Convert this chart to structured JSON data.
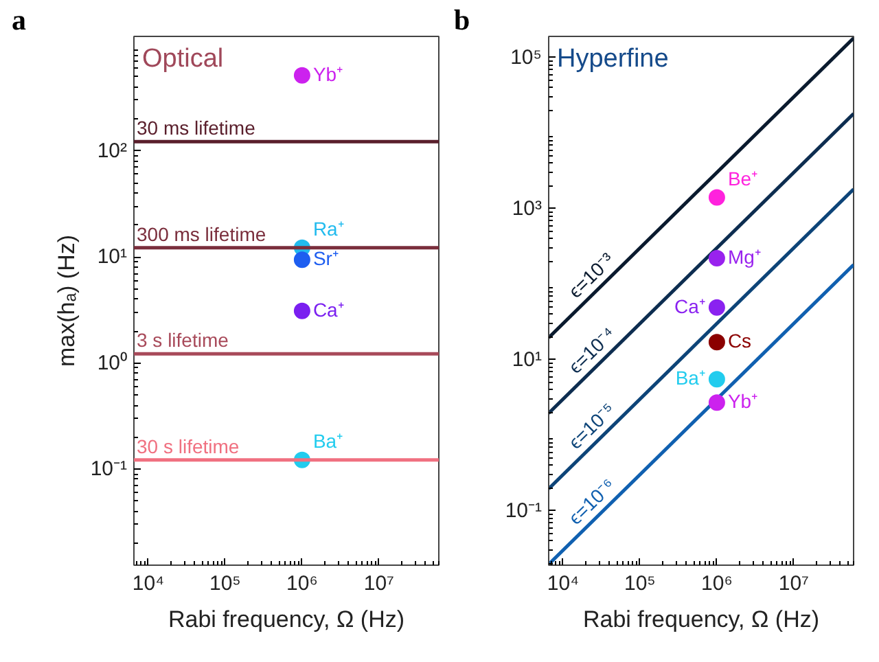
{
  "chart_data": [
    {
      "type": "scatter",
      "title": "Optical",
      "xlabel": "Rabi frequency, Ω (Hz)",
      "ylabel": "max(hₐ) (Hz)",
      "annotations": [
        "a"
      ],
      "log": "xy",
      "grid": false,
      "legend": false,
      "marker": "circle",
      "xlim": [
        6500,
        60000000
      ],
      "ylim": [
        0.0124,
        1200
      ],
      "xticks": [
        {
          "value": 10000,
          "label": "10⁴"
        },
        {
          "value": 100000,
          "label": "10⁵"
        },
        {
          "value": 1000000,
          "label": "10⁶"
        },
        {
          "value": 10000000,
          "label": "10⁷"
        }
      ],
      "yticks": [
        {
          "value": 0.1,
          "label": "10⁻¹"
        },
        {
          "value": 1,
          "label": "10⁰"
        },
        {
          "value": 10,
          "label": "10¹"
        },
        {
          "value": 100,
          "label": "10²"
        }
      ],
      "ref_lines": [
        {
          "axis": "y",
          "value": 122,
          "label": "30 ms lifetime",
          "color": "#5a1f2c"
        },
        {
          "axis": "y",
          "value": 12.2,
          "label": "300 ms lifetime",
          "color": "#7a2e3c"
        },
        {
          "axis": "y",
          "value": 1.22,
          "label": "3 s lifetime",
          "color": "#a84a5a"
        },
        {
          "axis": "y",
          "value": 0.122,
          "label": "30 s lifetime",
          "color": "#f07080"
        }
      ],
      "series": [
        {
          "name": "Yb⁺",
          "color": "#cc22ee",
          "x": [
            1000000
          ],
          "values": [
            515
          ]
        },
        {
          "name": "Ra⁺",
          "color": "#22bbee",
          "x": [
            1000000
          ],
          "values": [
            12.2
          ]
        },
        {
          "name": "Sr⁺",
          "color": "#1e5ef0",
          "x": [
            1000000
          ],
          "values": [
            9.4
          ]
        },
        {
          "name": "Ca⁺",
          "color": "#7a1ff0",
          "x": [
            1000000
          ],
          "values": [
            3.1
          ]
        },
        {
          "name": "Ba⁺",
          "color": "#22ccee",
          "x": [
            1000000
          ],
          "values": [
            0.122
          ]
        }
      ]
    },
    {
      "type": "line",
      "title": "Hyperfine",
      "xlabel": "Rabi frequency, Ω (Hz)",
      "annotations": [
        "b"
      ],
      "log": "xy",
      "grid": false,
      "legend": false,
      "xlim": [
        6500,
        60000000
      ],
      "ylim": [
        0.019,
        190000
      ],
      "xticks": [
        {
          "value": 10000,
          "label": "10⁴"
        },
        {
          "value": 100000,
          "label": "10⁵"
        },
        {
          "value": 1000000,
          "label": "10⁶"
        },
        {
          "value": 10000000,
          "label": "10⁷"
        }
      ],
      "yticks": [
        {
          "value": 0.1,
          "label": "10⁻¹"
        },
        {
          "value": 10,
          "label": "10¹"
        },
        {
          "value": 1000,
          "label": "10³"
        },
        {
          "value": 100000,
          "label": "10⁵"
        }
      ],
      "series": [
        {
          "name": "ϵ=10⁻³",
          "color": "#0a1a2e",
          "x": [
            6500,
            60000000
          ],
          "values": [
            19.5,
            180000
          ]
        },
        {
          "name": "ϵ=10⁻⁴",
          "color": "#0d2d50",
          "x": [
            6500,
            60000000
          ],
          "values": [
            1.95,
            18000
          ]
        },
        {
          "name": "ϵ=10⁻⁵",
          "color": "#0d4478",
          "x": [
            6500,
            60000000
          ],
          "values": [
            0.195,
            1800
          ]
        },
        {
          "name": "ϵ=10⁻⁶",
          "color": "#1060b0",
          "x": [
            6500,
            60000000
          ],
          "values": [
            0.0195,
            180
          ]
        },
        {
          "name": "Be⁺",
          "type": "scatter",
          "marker": "circle",
          "color": "#ff22dd",
          "x": [
            1000000
          ],
          "values": [
            1400
          ]
        },
        {
          "name": "Mg⁺",
          "type": "scatter",
          "marker": "circle",
          "color": "#9922ee",
          "x": [
            1000000
          ],
          "values": [
            220
          ]
        },
        {
          "name": "Ca⁺",
          "type": "scatter",
          "marker": "circle",
          "color": "#8a22f0",
          "x": [
            1000000
          ],
          "values": [
            49
          ]
        },
        {
          "name": "Cs",
          "type": "scatter",
          "marker": "circle",
          "color": "#8b0000",
          "x": [
            1000000
          ],
          "values": [
            17
          ]
        },
        {
          "name": "Ba⁺",
          "type": "scatter",
          "marker": "circle",
          "color": "#22ccee",
          "x": [
            1000000
          ],
          "values": [
            5.5
          ]
        },
        {
          "name": "Yb⁺",
          "type": "scatter",
          "marker": "circle",
          "color": "#cc22ee",
          "x": [
            1000000
          ],
          "values": [
            2.7
          ]
        }
      ]
    }
  ]
}
